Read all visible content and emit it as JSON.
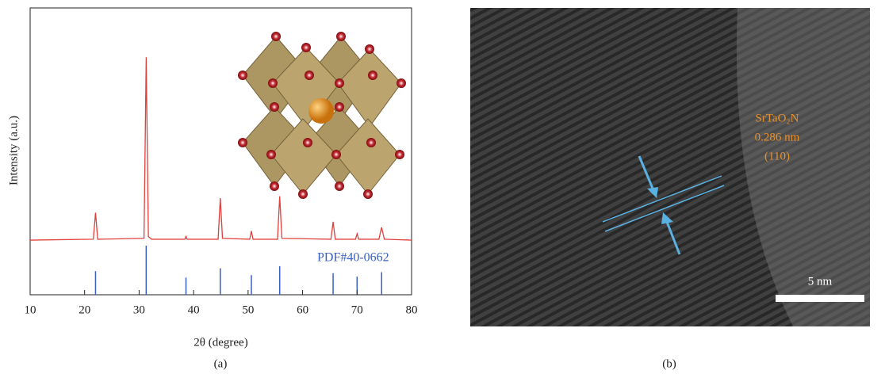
{
  "chart_data": [
    {
      "type": "line",
      "ylabel": "Intensity (a.u.)",
      "color": "#e0403c",
      "xlim": [
        10,
        80
      ],
      "ylim": [
        -3,
        127
      ],
      "x": [
        10,
        21.6,
        22.0,
        22.4,
        30.9,
        31.3,
        31.7,
        32.3,
        38.4,
        38.6,
        38.8,
        44.5,
        44.9,
        45.3,
        50.3,
        50.6,
        50.9,
        55.4,
        55.8,
        56.2,
        65.2,
        65.6,
        66.0,
        69.7,
        70.0,
        70.3,
        74.0,
        74.5,
        75.0,
        80
      ],
      "values": [
        0,
        0.5,
        15,
        0.5,
        1,
        100,
        2,
        0.5,
        0.5,
        2,
        0.5,
        0.5,
        23,
        1,
        0.5,
        5,
        0.5,
        0.5,
        24,
        1,
        0.5,
        10,
        0.5,
        0.5,
        3.5,
        0.5,
        0.5,
        7,
        0.5,
        0
      ]
    },
    {
      "type": "stem",
      "xlabel": "2θ (degree)",
      "annotation": "PDF#40-0662",
      "color": "#3a5fc0",
      "xlim": [
        10,
        80
      ],
      "ylim": [
        0,
        100
      ],
      "x": [
        22.0,
        31.3,
        38.6,
        44.9,
        50.6,
        55.8,
        65.6,
        70.0,
        74.5
      ],
      "values": [
        48,
        100,
        35,
        54,
        40,
        58,
        44,
        37,
        46
      ],
      "xticks": [
        10,
        20,
        30,
        40,
        50,
        60,
        70,
        80
      ]
    }
  ],
  "panel_a": "(a)",
  "panel_b": "(b)",
  "image_b": {
    "phase": "SrTaO₂N",
    "spacing": "0.286 nm",
    "plane": "(110)",
    "scale_bar": "5 nm"
  }
}
